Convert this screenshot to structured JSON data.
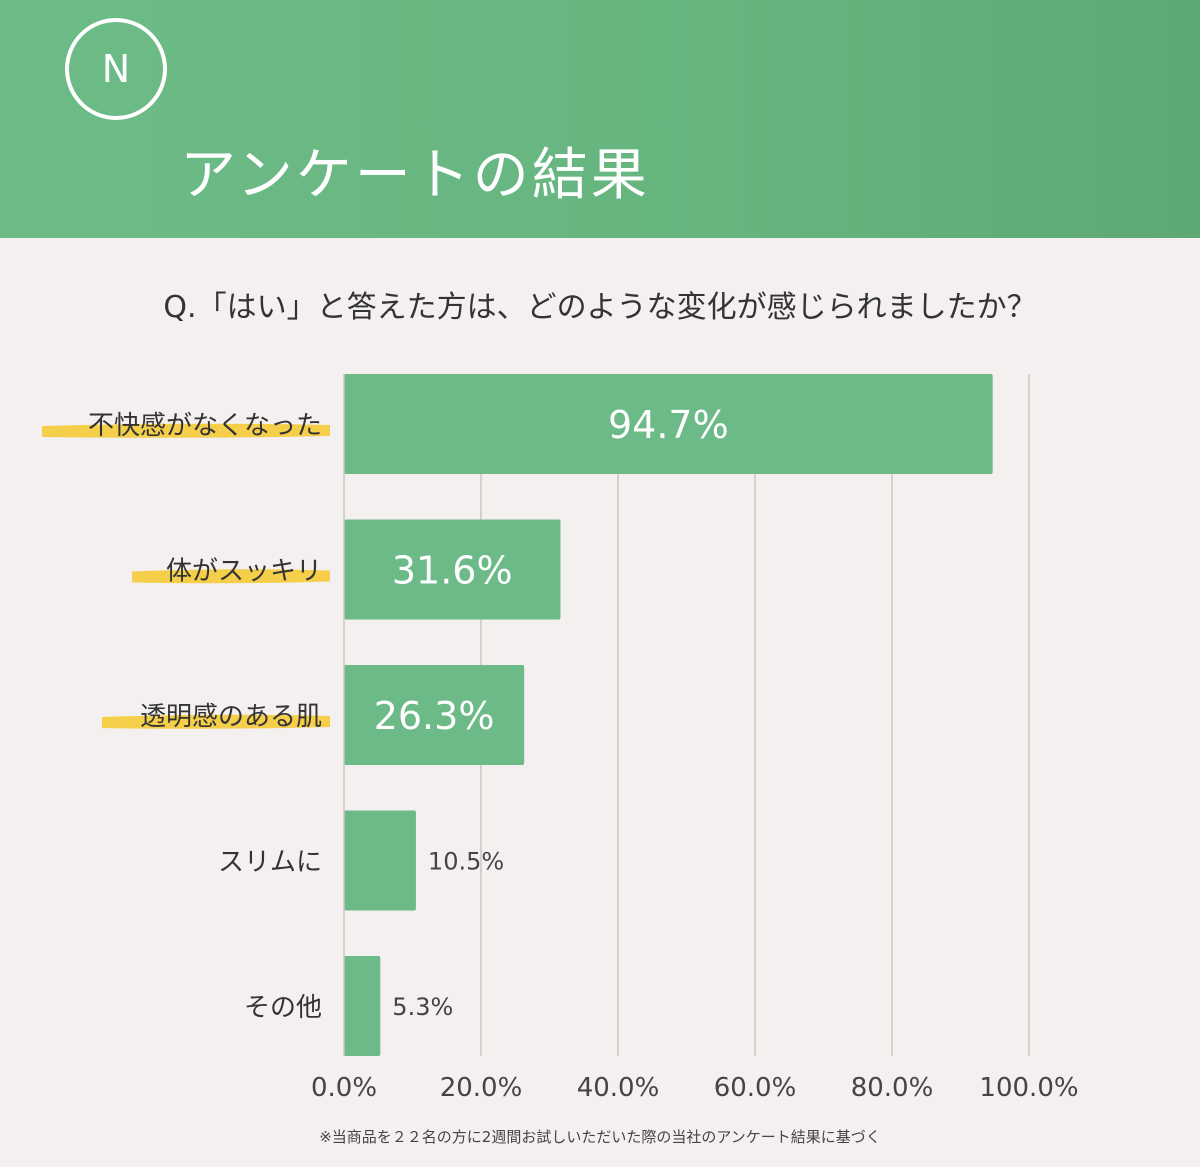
{
  "header": {
    "logo_letter": "N",
    "title": "アンケートの結果"
  },
  "question": "Q.「はい」と答えた方は、どのような変化が感じられましたか？",
  "footnote": "※当商品を２２名の方に2週間お試しいただいた際の当社のアンケート結果に基づく",
  "colors": {
    "header": "#6ab884",
    "bar": "#6cba87",
    "highlight": "#f5cf4a",
    "grid": "#c9c5c4",
    "text": "#333333"
  },
  "chart_data": {
    "type": "bar",
    "orientation": "horizontal",
    "categories": [
      "不快感がなくなった",
      "体がスッキリ",
      "透明感のある肌",
      "スリムに",
      "その他"
    ],
    "values": [
      94.7,
      31.6,
      26.3,
      10.5,
      5.3
    ],
    "value_labels": [
      "94.7%",
      "31.6%",
      "26.3%",
      "10.5%",
      "5.3%"
    ],
    "highlighted": [
      true,
      true,
      true,
      false,
      false
    ],
    "xlim": [
      0,
      100
    ],
    "xticks": [
      "0.0%",
      "20.0%",
      "40.0%",
      "60.0%",
      "80.0%",
      "100.0%"
    ],
    "grid": true
  }
}
